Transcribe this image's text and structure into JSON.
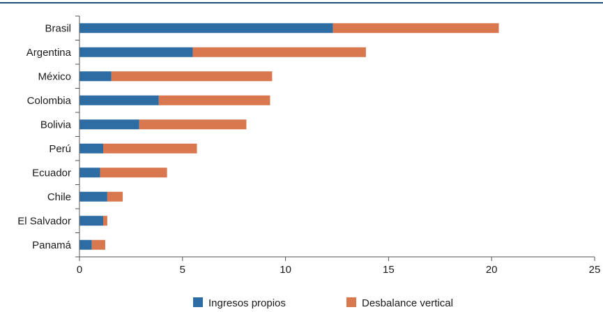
{
  "chart_data": {
    "type": "bar",
    "orientation": "horizontal",
    "stacked": true,
    "title": "",
    "xlabel": "",
    "ylabel": "",
    "categories": [
      "Brasil",
      "Argentina",
      "México",
      "Colombia",
      "Bolivia",
      "Perú",
      "Ecuador",
      "Chile",
      "El Salvador",
      "Panamá"
    ],
    "series": [
      {
        "name": "Ingresos propios",
        "color": "#2e6da4",
        "values": [
          12.3,
          5.5,
          1.55,
          3.85,
          2.9,
          1.15,
          1.0,
          1.35,
          1.15,
          0.6
        ]
      },
      {
        "name": "Desbalance vertical",
        "color": "#d9774e",
        "values": [
          8.05,
          8.4,
          7.8,
          5.4,
          5.2,
          4.55,
          3.25,
          0.75,
          0.2,
          0.65
        ]
      }
    ],
    "xlim": [
      0,
      25
    ],
    "xticks": [
      0,
      5,
      10,
      15,
      20,
      25
    ],
    "grid": false,
    "legend_position": "bottom"
  },
  "colors": {
    "top_rule": "#1f4e79",
    "axis": "#555555"
  }
}
